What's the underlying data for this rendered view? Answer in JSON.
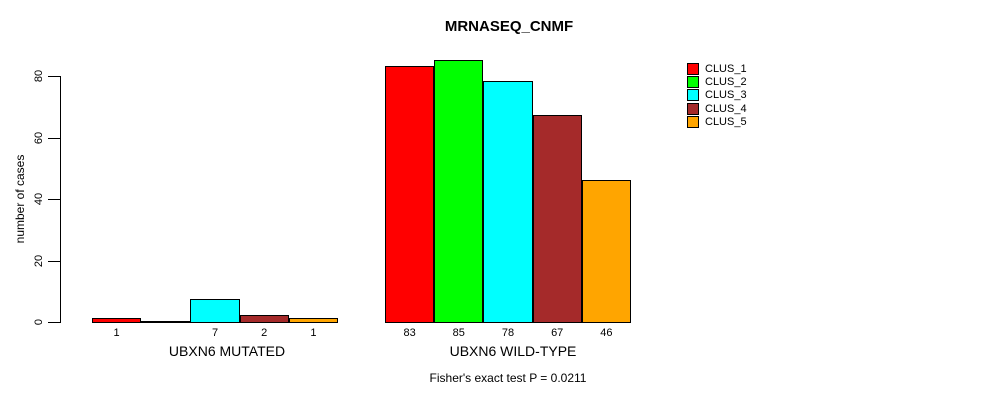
{
  "chart_data": {
    "type": "bar",
    "title": "MRNASEQ_CNMF",
    "ylabel": "number of cases",
    "xlabel": "",
    "ylim": [
      0,
      80
    ],
    "yticks": [
      0,
      20,
      40,
      60,
      80
    ],
    "grid": false,
    "legend_position": "right",
    "series_colors": [
      "#FF0000",
      "#00FF00",
      "#00FFFF",
      "#A52A2A",
      "#FFA500"
    ],
    "series_names": [
      "CLUS_1",
      "CLUS_2",
      "CLUS_3",
      "CLUS_4",
      "CLUS_5"
    ],
    "groups": [
      {
        "label": "UBXN6 MUTATED",
        "values": [
          1,
          0,
          7,
          2,
          1
        ],
        "bar_labels": [
          "1",
          "",
          "7",
          "2",
          "1"
        ]
      },
      {
        "label": "UBXN6 WILD-TYPE",
        "values": [
          83,
          85,
          78,
          67,
          46
        ],
        "bar_labels": [
          "83",
          "85",
          "78",
          "67",
          "46"
        ]
      }
    ],
    "legend": [
      {
        "label": "CLUS_1",
        "color": "#FF0000"
      },
      {
        "label": "CLUS_2",
        "color": "#00FF00"
      },
      {
        "label": "CLUS_3",
        "color": "#00FFFF"
      },
      {
        "label": "CLUS_4",
        "color": "#A52A2A"
      },
      {
        "label": "CLUS_5",
        "color": "#FFA500"
      }
    ],
    "annotation": "Fisher's exact test P = 0.0211"
  }
}
